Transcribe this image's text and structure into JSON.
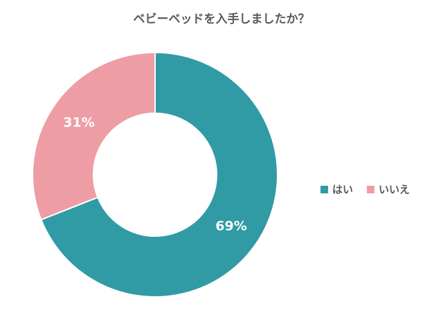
{
  "chart_data": {
    "type": "pie",
    "title": "ベビーベッドを入手しましたか？",
    "categories": [
      "はい",
      "いいえ"
    ],
    "values": [
      69,
      31
    ],
    "value_labels": [
      "69%",
      "31%"
    ],
    "colors": [
      "#309ba5",
      "#ef9da5"
    ],
    "legend": "right"
  }
}
